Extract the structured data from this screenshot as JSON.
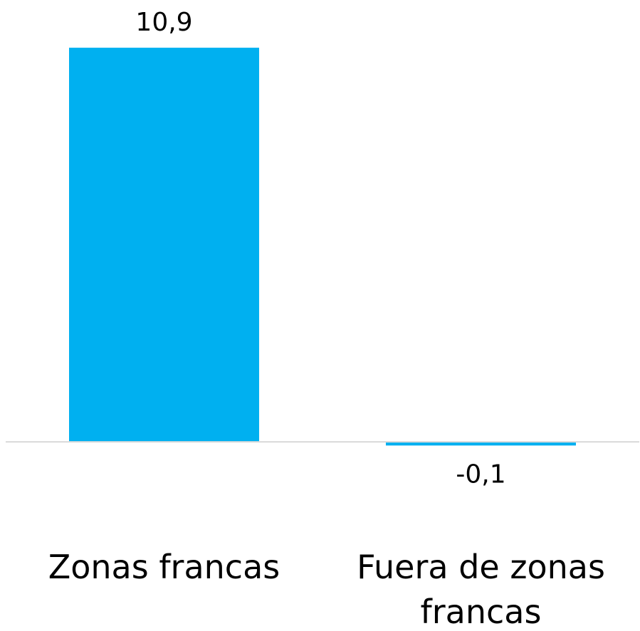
{
  "chart_data": {
    "type": "bar",
    "categories": [
      "Zonas francas",
      "Fuera de zonas francas"
    ],
    "values": [
      10.9,
      -0.1
    ],
    "value_labels": [
      "10,9",
      "-0,1"
    ],
    "color": "#00b0f0",
    "ylim": [
      -1,
      11
    ]
  }
}
